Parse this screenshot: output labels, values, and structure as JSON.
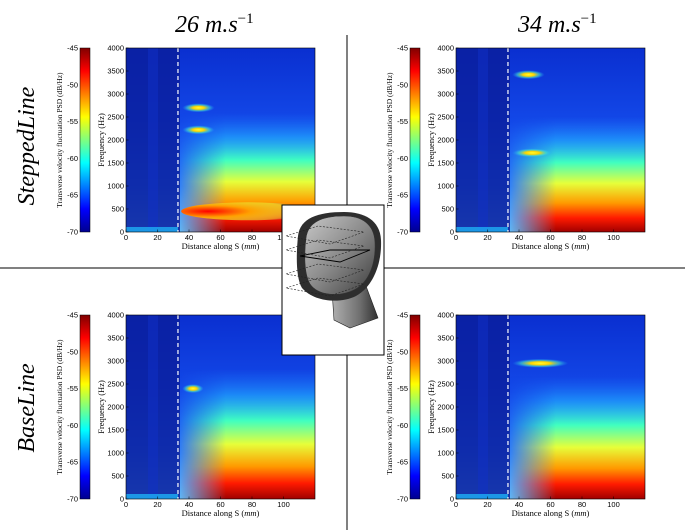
{
  "figure": {
    "col_titles": [
      {
        "main": "26 m.s",
        "exp": "−1"
      },
      {
        "main": "34 m.s",
        "exp": "−1"
      }
    ],
    "row_labels": [
      "SteppedLine",
      "BaseLine"
    ]
  },
  "chart_data": [
    {
      "type": "heatmap",
      "panel": "SteppedLine / 26 m.s-1",
      "xlabel": "Distance along S",
      "xlabel_unit": "mm",
      "ylabel": "Frequency (Hz)",
      "colorbar_label": "Transverse velocity fluctuation PSD (dB/Hz)",
      "xlim": [
        0,
        120
      ],
      "ylim": [
        0,
        4000
      ],
      "clim": [
        -70,
        -45
      ],
      "xticks": [
        0,
        20,
        40,
        60,
        80,
        100
      ],
      "yticks": [
        0,
        500,
        1000,
        1500,
        2000,
        2500,
        3000,
        3500,
        4000
      ],
      "cbticks": [
        -45,
        -50,
        -55,
        -60,
        -65,
        -70
      ],
      "dashed_line_x": 33,
      "tones": [
        {
          "freq": 2700,
          "x_start": 37,
          "x_end": 55
        },
        {
          "freq": 2220,
          "x_start": 37,
          "x_end": 55
        },
        {
          "freq": 450,
          "x_start": 35,
          "x_end": 120
        }
      ]
    },
    {
      "type": "heatmap",
      "panel": "SteppedLine / 34 m.s-1",
      "xlabel": "Distance along S",
      "xlabel_unit": "mm",
      "ylabel": "Frequency (Hz)",
      "colorbar_label": "Transverse velocity fluctuation PSD (dB/Hz)",
      "xlim": [
        0,
        120
      ],
      "ylim": [
        0,
        4000
      ],
      "clim": [
        -70,
        -45
      ],
      "xticks": [
        0,
        20,
        40,
        60,
        80,
        100
      ],
      "yticks": [
        0,
        500,
        1000,
        1500,
        2000,
        2500,
        3000,
        3500,
        4000
      ],
      "cbticks": [
        -45,
        -50,
        -55,
        -60,
        -65,
        -70
      ],
      "dashed_line_x": 33,
      "tones": [
        {
          "freq": 3420,
          "x_start": 37,
          "x_end": 55
        },
        {
          "freq": 1720,
          "x_start": 37,
          "x_end": 60
        }
      ]
    },
    {
      "type": "heatmap",
      "panel": "BaseLine / 26 m.s-1",
      "xlabel": "Distance along S",
      "xlabel_unit": "mm",
      "ylabel": "Frequency (Hz)",
      "colorbar_label": "Transverse velocity fluctuation PSD (dB/Hz)",
      "xlim": [
        0,
        120
      ],
      "ylim": [
        0,
        4000
      ],
      "clim": [
        -70,
        -45
      ],
      "xticks": [
        0,
        20,
        40,
        60,
        80,
        100
      ],
      "yticks": [
        0,
        500,
        1000,
        1500,
        2000,
        2500,
        3000,
        3500,
        4000
      ],
      "cbticks": [
        -45,
        -50,
        -55,
        -60,
        -65,
        -70
      ],
      "dashed_line_x": 33,
      "tones": [
        {
          "freq": 2400,
          "x_start": 37,
          "x_end": 48
        }
      ]
    },
    {
      "type": "heatmap",
      "panel": "BaseLine / 34 m.s-1",
      "xlabel": "Distance along S",
      "xlabel_unit": "mm",
      "ylabel": "Frequency (Hz)",
      "colorbar_label": "Transverse velocity fluctuation PSD (dB/Hz)",
      "xlim": [
        0,
        120
      ],
      "ylim": [
        0,
        4000
      ],
      "clim": [
        -70,
        -45
      ],
      "xticks": [
        0,
        20,
        40,
        60,
        80,
        100
      ],
      "yticks": [
        0,
        500,
        1000,
        1500,
        2000,
        2500,
        3000,
        3500,
        4000
      ],
      "cbticks": [
        -45,
        -50,
        -55,
        -60,
        -65,
        -70
      ],
      "dashed_line_x": 33,
      "tones": [
        {
          "freq": 2950,
          "x_start": 37,
          "x_end": 70
        }
      ]
    }
  ]
}
